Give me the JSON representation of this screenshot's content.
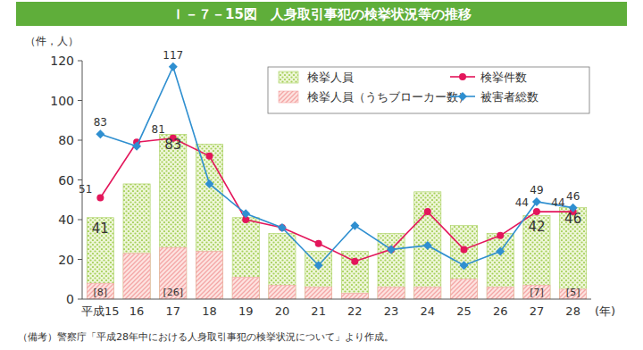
{
  "chart_data": {
    "type": "bar",
    "title": "Ｉ－７－15図　人身取引事犯の検挙状況等の推移",
    "y_label": "（件，人）",
    "x_label": "(年)",
    "note": "（備考）警察庁「平成28年中における人身取引事犯の検挙状況について」より作成。",
    "categories": [
      "平成15",
      "16",
      "17",
      "18",
      "19",
      "20",
      "21",
      "22",
      "23",
      "24",
      "25",
      "26",
      "27",
      "28"
    ],
    "ylim": [
      0,
      120
    ],
    "yticks": [
      0,
      20,
      40,
      60,
      80,
      100,
      120
    ],
    "stacked": false,
    "grid": false,
    "legend": "top-right",
    "series": [
      {
        "name": "検挙人員",
        "type": "bar",
        "color": "#a6d05a",
        "values": [
          41,
          58,
          83,
          78,
          41,
          33,
          24,
          24,
          33,
          54,
          37,
          33,
          42,
          46
        ],
        "value_labels": [
          "41",
          null,
          "83",
          null,
          null,
          null,
          null,
          null,
          null,
          null,
          null,
          null,
          "42",
          "46"
        ]
      },
      {
        "name": "検挙人員（うちブローカー数）",
        "type": "bar",
        "color": "#f4a6a6",
        "values": [
          8,
          23,
          26,
          24,
          11,
          7,
          6,
          3,
          6,
          6,
          10,
          6,
          7,
          5
        ],
        "value_labels": [
          "[8]",
          null,
          "[26]",
          null,
          null,
          null,
          null,
          null,
          null,
          null,
          null,
          null,
          "[7]",
          "[5]"
        ]
      },
      {
        "name": "検挙件数",
        "type": "line",
        "color": "#e3165b",
        "marker": "circle",
        "values": [
          51,
          79,
          81,
          72,
          40,
          36,
          28,
          19,
          25,
          44,
          25,
          32,
          44,
          44
        ],
        "value_labels": [
          "51",
          null,
          "81",
          null,
          null,
          null,
          null,
          null,
          null,
          null,
          null,
          null,
          "44",
          "44"
        ]
      },
      {
        "name": "被害者総数",
        "type": "line",
        "color": "#2f8fd0",
        "marker": "diamond",
        "values": [
          83,
          77,
          117,
          58,
          43,
          36,
          17,
          37,
          25,
          27,
          17,
          24,
          49,
          46
        ],
        "value_labels": [
          "83",
          null,
          "117",
          null,
          null,
          null,
          null,
          null,
          null,
          null,
          null,
          null,
          "49",
          "46"
        ]
      }
    ]
  }
}
